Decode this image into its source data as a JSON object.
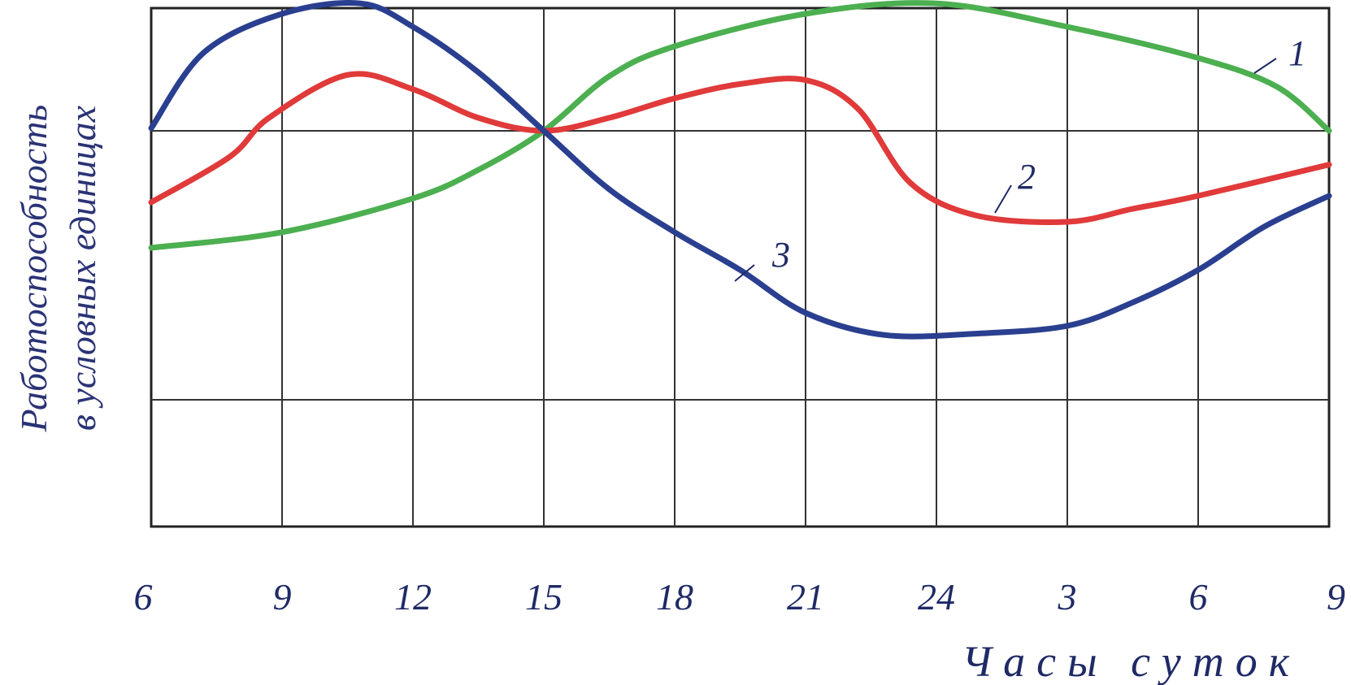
{
  "chart_data": {
    "type": "line",
    "title": "",
    "xlabel": "Часы суток",
    "ylabel_lines": [
      "Работоспособность",
      "в условных единицах"
    ],
    "x_ticks": [
      "6",
      "9",
      "12",
      "15",
      "18",
      "21",
      "24",
      "3",
      "6",
      "9"
    ],
    "ylim": [
      -1,
      3
    ],
    "grid": true,
    "y_gridlines": [
      -0.5,
      1.5,
      2.5
    ],
    "series": [
      {
        "name": "1",
        "color": "#4caf50",
        "x": [
          0,
          1,
          2,
          2.5,
          3,
          3.5,
          4,
          5,
          6,
          7,
          8,
          8.6,
          9
        ],
        "values": [
          0.6,
          0.72,
          0.98,
          1.2,
          1.5,
          1.92,
          2.15,
          2.4,
          2.48,
          2.3,
          2.06,
          1.84,
          1.5
        ]
      },
      {
        "name": "2",
        "color": "#e03a3a",
        "x": [
          0,
          0.6,
          0.9,
          1.5,
          2,
          2.5,
          3,
          3.5,
          4,
          4.5,
          5,
          5.4,
          5.8,
          6.3,
          7,
          7.5,
          8,
          9
        ],
        "values": [
          0.95,
          1.3,
          1.6,
          1.93,
          1.82,
          1.6,
          1.5,
          1.6,
          1.75,
          1.86,
          1.89,
          1.67,
          1.1,
          0.85,
          0.8,
          0.9,
          1.0,
          1.24
        ]
      },
      {
        "name": "3",
        "color": "#2a3f8f",
        "x": [
          0,
          0.4,
          1,
          1.6,
          2,
          2.5,
          3,
          3.5,
          4,
          4.5,
          5,
          5.6,
          6.3,
          7,
          7.5,
          8,
          8.5,
          9
        ],
        "values": [
          1.52,
          2.1,
          2.4,
          2.48,
          2.3,
          1.95,
          1.5,
          1.05,
          0.72,
          0.43,
          0.1,
          -0.07,
          -0.06,
          0.0,
          0.18,
          0.43,
          0.76,
          1.0
        ]
      }
    ]
  }
}
